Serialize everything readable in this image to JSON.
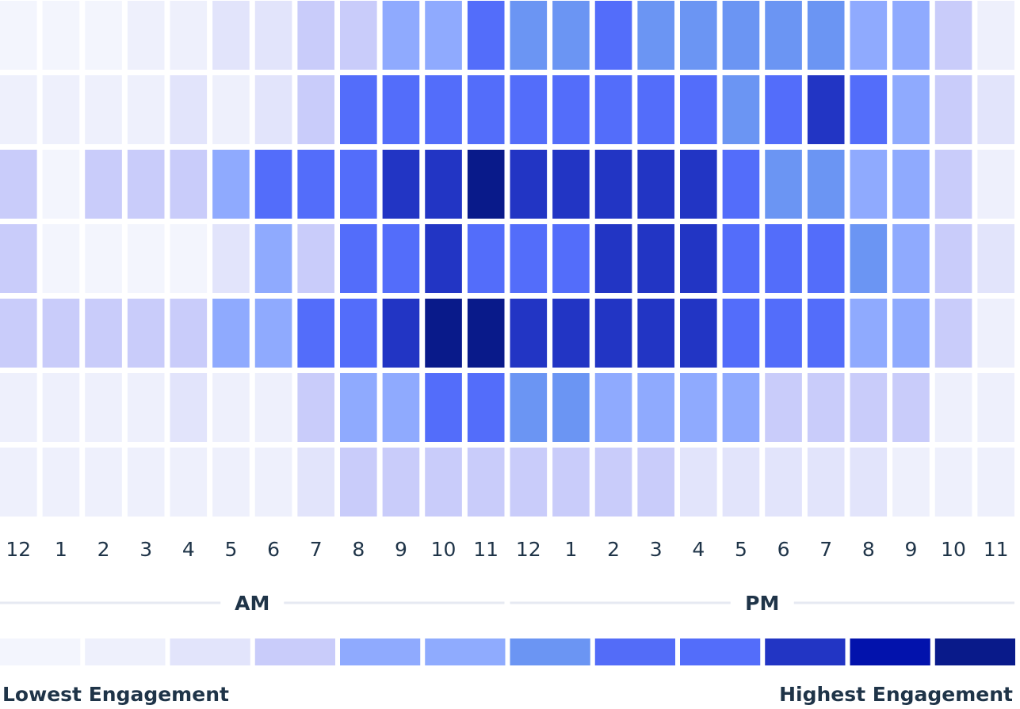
{
  "chart_data": {
    "type": "heatmap",
    "x_categories": [
      "12",
      "1",
      "2",
      "3",
      "4",
      "5",
      "6",
      "7",
      "8",
      "9",
      "10",
      "11",
      "12",
      "1",
      "2",
      "3",
      "4",
      "5",
      "6",
      "7",
      "8",
      "9",
      "10",
      "11"
    ],
    "periods": [
      {
        "label": "AM",
        "start": 0,
        "end": 11
      },
      {
        "label": "PM",
        "start": 12,
        "end": 23
      }
    ],
    "scale_levels": 12,
    "levels": [
      [
        0,
        0,
        0,
        1,
        1,
        2,
        2,
        3,
        3,
        4,
        4,
        8,
        6,
        6,
        8,
        6,
        6,
        6,
        6,
        6,
        4,
        4,
        3,
        1
      ],
      [
        1,
        1,
        1,
        1,
        2,
        1,
        2,
        3,
        8,
        8,
        8,
        8,
        8,
        8,
        8,
        8,
        8,
        6,
        8,
        9,
        8,
        4,
        3,
        2
      ],
      [
        3,
        0,
        3,
        3,
        3,
        4,
        8,
        8,
        8,
        9,
        9,
        11,
        9,
        9,
        9,
        9,
        9,
        8,
        6,
        6,
        4,
        4,
        3,
        1
      ],
      [
        3,
        0,
        0,
        0,
        0,
        2,
        4,
        3,
        8,
        8,
        9,
        8,
        8,
        8,
        9,
        9,
        9,
        8,
        8,
        8,
        6,
        4,
        3,
        2
      ],
      [
        3,
        3,
        3,
        3,
        3,
        4,
        4,
        8,
        8,
        9,
        11,
        11,
        9,
        9,
        9,
        9,
        9,
        8,
        8,
        8,
        4,
        4,
        3,
        1
      ],
      [
        1,
        1,
        1,
        1,
        2,
        1,
        1,
        3,
        4,
        4,
        8,
        8,
        6,
        6,
        4,
        4,
        4,
        4,
        3,
        3,
        3,
        3,
        1,
        1
      ],
      [
        1,
        1,
        1,
        1,
        1,
        1,
        1,
        2,
        3,
        3,
        3,
        3,
        3,
        3,
        3,
        3,
        2,
        2,
        2,
        2,
        2,
        1,
        1,
        1
      ]
    ],
    "legend": {
      "colors": [
        "#f3f5fd",
        "#eef0fc",
        "#e2e4fb",
        "#c9ccfa",
        "#8faafe",
        "#8fabfe",
        "#6b95f3",
        "#536cf8",
        "#536dfa",
        "#2235c4",
        "#0212ac",
        "#091a8a"
      ],
      "low_label": "Lowest Engagement",
      "high_label": "Highest Engagement"
    }
  }
}
